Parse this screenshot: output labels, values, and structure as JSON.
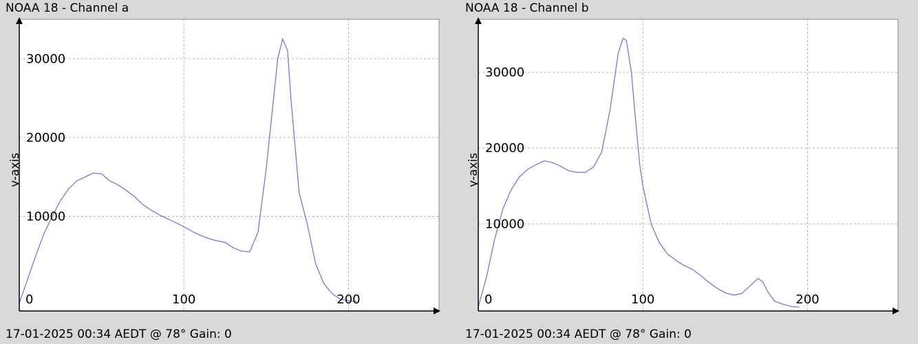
{
  "charts": [
    {
      "title": "NOAA 18 - Channel a",
      "footer": "17-01-2025 00:34 AEDT @ 78° Gain: 0",
      "ylabel": "y-axis"
    },
    {
      "title": "NOAA 18 - Channel b",
      "footer": "17-01-2025 00:34 AEDT @ 78° Gain: 0",
      "ylabel": "y-axis"
    }
  ],
  "chart_data": [
    {
      "type": "line",
      "title": "NOAA 18 - Channel a",
      "xlabel": "",
      "ylabel": "y-axis",
      "xlim": [
        0,
        255
      ],
      "ylim": [
        -2000,
        35000
      ],
      "x_ticks": [
        0,
        100,
        200
      ],
      "y_ticks": [
        10000,
        20000,
        30000
      ],
      "grid": true,
      "line_color": "#7777dd",
      "series": [
        {
          "x": [
            0,
            5,
            10,
            15,
            20,
            25,
            30,
            35,
            40,
            45,
            50,
            55,
            60,
            65,
            70,
            75,
            80,
            85,
            90,
            95,
            100,
            105,
            110,
            115,
            120,
            125,
            130,
            135,
            140,
            145,
            150,
            155,
            157,
            160,
            163,
            165,
            170,
            175,
            180,
            185,
            190,
            195,
            200,
            205
          ],
          "y": [
            -1000,
            2000,
            5000,
            7800,
            10000,
            12000,
            13500,
            14500,
            15000,
            15500,
            15400,
            14500,
            14000,
            13300,
            12500,
            11500,
            10800,
            10200,
            9700,
            9200,
            8700,
            8100,
            7600,
            7200,
            6900,
            6700,
            6000,
            5600,
            5500,
            8000,
            16000,
            26000,
            30000,
            32500,
            31000,
            25000,
            13000,
            9000,
            4000,
            1500,
            200,
            -500,
            -700,
            -800
          ]
        }
      ]
    },
    {
      "type": "line",
      "title": "NOAA 18 - Channel b",
      "xlabel": "",
      "ylabel": "y-axis",
      "xlim": [
        0,
        255
      ],
      "ylim": [
        -1500,
        37000
      ],
      "x_ticks": [
        0,
        100,
        200
      ],
      "y_ticks": [
        10000,
        20000,
        30000
      ],
      "grid": true,
      "line_color": "#7777dd",
      "series": [
        {
          "x": [
            0,
            5,
            10,
            15,
            20,
            25,
            30,
            35,
            40,
            45,
            50,
            55,
            60,
            65,
            70,
            75,
            80,
            82,
            85,
            88,
            90,
            93,
            95,
            98,
            100,
            105,
            110,
            115,
            120,
            125,
            130,
            135,
            140,
            145,
            150,
            155,
            160,
            165,
            170,
            173,
            176,
            180,
            185,
            190,
            195
          ],
          "y": [
            -1000,
            3000,
            8000,
            12000,
            14500,
            16200,
            17200,
            17800,
            18300,
            18100,
            17600,
            17000,
            16800,
            16800,
            17500,
            19500,
            25000,
            28000,
            32500,
            34500,
            34200,
            30000,
            25000,
            18000,
            15000,
            10000,
            7500,
            6000,
            5200,
            4500,
            4000,
            3200,
            2300,
            1500,
            900,
            600,
            800,
            1800,
            2800,
            2300,
            1000,
            -200,
            -600,
            -900,
            -1000
          ]
        }
      ]
    }
  ]
}
